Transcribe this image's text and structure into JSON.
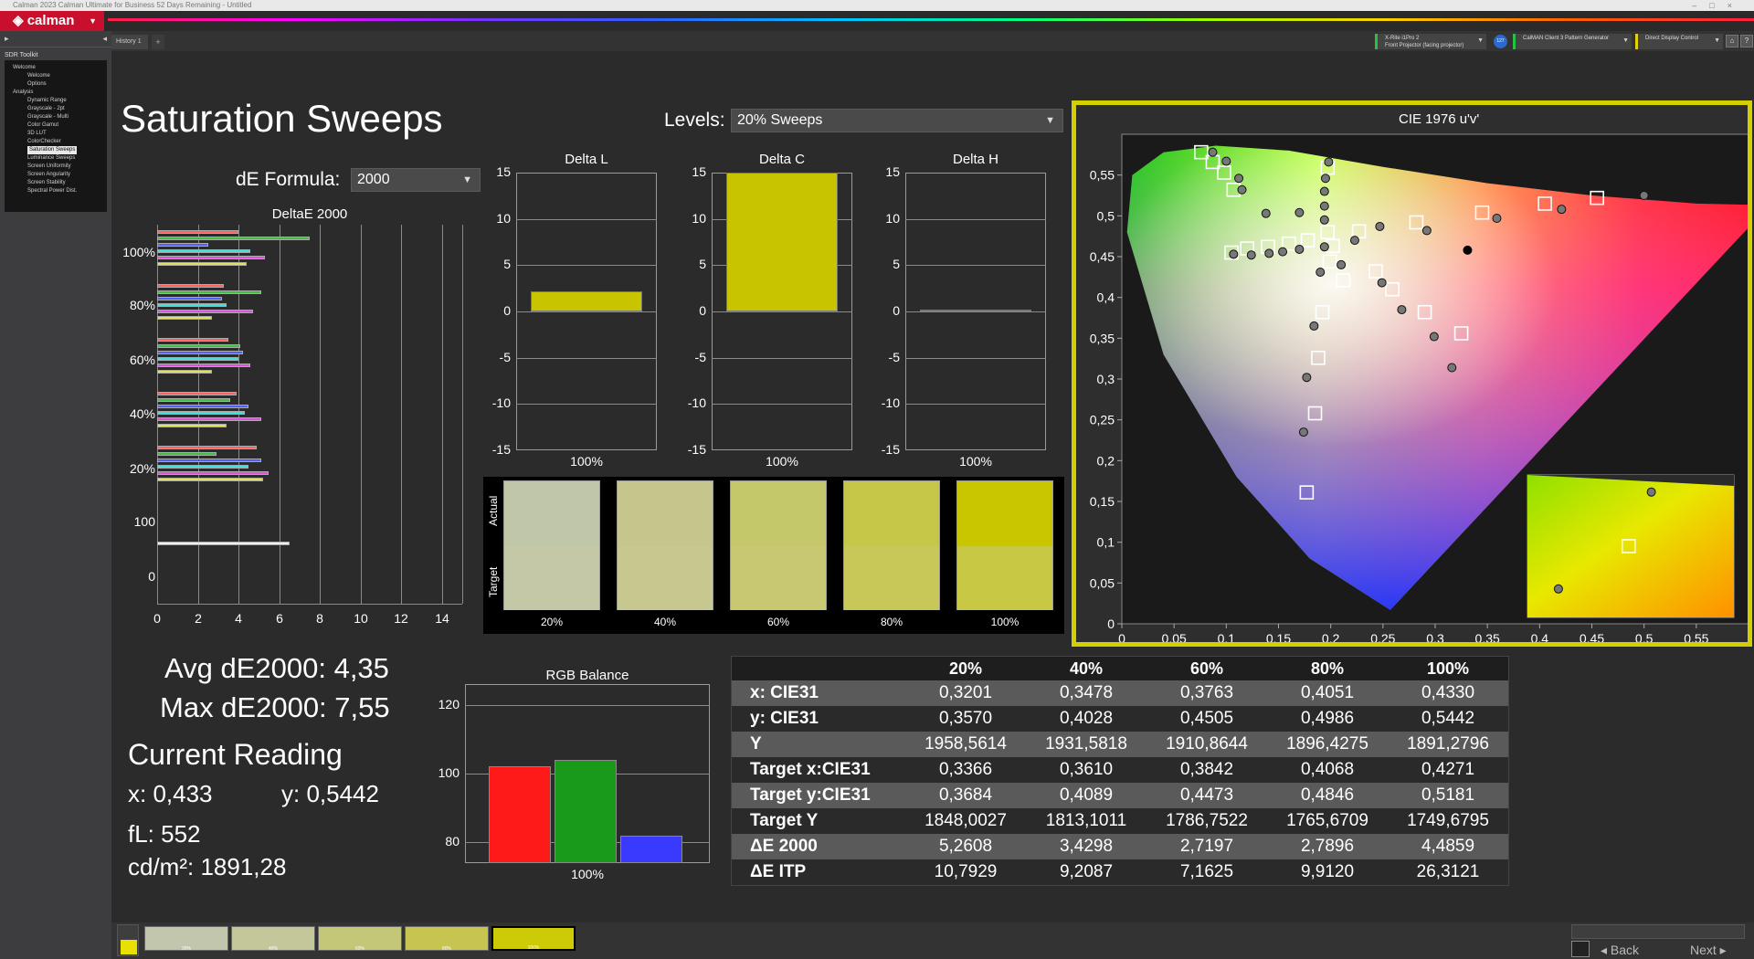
{
  "window": {
    "title": "Calman 2023 Calman Ultimate for Business 52 Days Remaining - Untitled"
  },
  "brand": {
    "logo": "calman"
  },
  "tabs": {
    "history": "History 1",
    "add": "+"
  },
  "devices": {
    "meter_line1": "X-Rite i1Pro 2",
    "meter_line2": "Front Projector (facing projector)",
    "badge": "127",
    "pattern_gen": "CalMAN Client 3 Pattern Generator",
    "display_ctrl": "Direct Display Control"
  },
  "sidebar": {
    "title": "SDR Toolkit",
    "tree": [
      {
        "label": "Welcome",
        "level": 0
      },
      {
        "label": "Welcome",
        "level": 1
      },
      {
        "label": "Options",
        "level": 1
      },
      {
        "label": "Analysis",
        "level": 0
      },
      {
        "label": "Dynamic Range",
        "level": 1
      },
      {
        "label": "Grayscale - 2pt",
        "level": 1
      },
      {
        "label": "Grayscale - Multi",
        "level": 1
      },
      {
        "label": "Color Gamut",
        "level": 1
      },
      {
        "label": "3D LUT",
        "level": 1
      },
      {
        "label": "ColorChecker",
        "level": 1
      },
      {
        "label": "Saturation Sweeps",
        "level": 1,
        "selected": true
      },
      {
        "label": "Luminance Sweeps",
        "level": 1
      },
      {
        "label": "Screen Uniformity",
        "level": 1
      },
      {
        "label": "Screen Angularity",
        "level": 1
      },
      {
        "label": "Screen Stability",
        "level": 1
      },
      {
        "label": "Spectral Power Dist.",
        "level": 1
      }
    ]
  },
  "page": {
    "title": "Saturation Sweeps",
    "levels_label": "Levels:",
    "levels_value": "20% Sweeps",
    "de_formula_label": "dE Formula:",
    "de_formula_value": "2000"
  },
  "colors": {
    "accent": "#d4d000",
    "logo": "#c8102e",
    "yellow_bar": "#c8c400"
  },
  "deltae_chart": {
    "title": "DeltaE 2000",
    "x_ticks": [
      "0",
      "2",
      "4",
      "6",
      "8",
      "10",
      "12",
      "14"
    ],
    "y_labels": [
      "100%",
      "80%",
      "60%",
      "40%",
      "20%",
      "100",
      "0"
    ],
    "xlim": [
      0,
      15
    ],
    "groups": [
      {
        "label": "100%",
        "values": [
          4.0,
          7.5,
          2.5,
          4.6,
          5.3,
          4.4
        ]
      },
      {
        "label": "80%",
        "values": [
          3.3,
          5.1,
          3.2,
          3.4,
          4.7,
          2.7
        ]
      },
      {
        "label": "60%",
        "values": [
          3.5,
          4.1,
          4.2,
          4.0,
          4.6,
          2.7
        ]
      },
      {
        "label": "40%",
        "values": [
          3.9,
          3.6,
          4.5,
          4.3,
          5.1,
          3.4
        ]
      },
      {
        "label": "20%",
        "values": [
          4.9,
          2.9,
          5.1,
          4.5,
          5.5,
          5.2
        ]
      },
      {
        "label": "100",
        "values": [
          6.5
        ]
      }
    ],
    "series_colors": [
      "#ff6060",
      "#40c040",
      "#5060ff",
      "#40e0e0",
      "#e050e0",
      "#e0e060"
    ]
  },
  "delta_charts": {
    "ticks": [
      "15",
      "10",
      "5",
      "0",
      "-5",
      "-10",
      "-15"
    ],
    "ylim": [
      -15,
      15
    ],
    "cat_label": "100%",
    "charts": [
      {
        "title": "Delta L",
        "value": 2.2
      },
      {
        "title": "Delta C",
        "value": 15
      },
      {
        "title": "Delta H",
        "value": 0.2
      }
    ]
  },
  "swatches": {
    "actual_label": "Actual",
    "target_label": "Target",
    "items": [
      {
        "label": "20%",
        "actual": "#c0c6a8",
        "target": "#c5c8a6"
      },
      {
        "label": "40%",
        "actual": "#c4c68c",
        "target": "#c7c890"
      },
      {
        "label": "60%",
        "actual": "#c5c86a",
        "target": "#c8c872"
      },
      {
        "label": "80%",
        "actual": "#c6c648",
        "target": "#c8c858"
      },
      {
        "label": "100%",
        "actual": "#c9c600",
        "target": "#c8c844"
      }
    ]
  },
  "stats": {
    "avg": "Avg dE2000: 4,35",
    "max": "Max dE2000: 7,55",
    "current_title": "Current Reading",
    "x": "x: 0,433",
    "y": "y: 0,5442",
    "fl": "fL: 552",
    "cdm2": "cd/m²: 1891,28"
  },
  "rgb_balance": {
    "title": "RGB Balance",
    "y_ticks": [
      "120",
      "100",
      "80"
    ],
    "ylim": [
      74,
      126
    ],
    "cat_label": "100%",
    "values": [
      {
        "color": "#ff1a1a",
        "value": 102
      },
      {
        "color": "#1a9a1a",
        "value": 104
      },
      {
        "color": "#3a3aff",
        "value": 82
      }
    ]
  },
  "cie": {
    "title": "CIE 1976 u'v'",
    "x_ticks": [
      "0",
      "0,05",
      "0,1",
      "0,15",
      "0,2",
      "0,25",
      "0,3",
      "0,35",
      "0,4",
      "0,45",
      "0,5",
      "0,55"
    ],
    "y_ticks": [
      "0,55",
      "0,5",
      "0,45",
      "0,4",
      "0,35",
      "0,3",
      "0,25",
      "0,2",
      "0,15",
      "0,1",
      "0,05",
      "0"
    ],
    "targets": [
      [
        0.076,
        0.578
      ],
      [
        0.087,
        0.566
      ],
      [
        0.098,
        0.553
      ],
      [
        0.107,
        0.532
      ],
      [
        0.197,
        0.559
      ],
      [
        0.197,
        0.48
      ],
      [
        0.105,
        0.455
      ],
      [
        0.12,
        0.46
      ],
      [
        0.14,
        0.462
      ],
      [
        0.16,
        0.466
      ],
      [
        0.178,
        0.47
      ],
      [
        0.202,
        0.463
      ],
      [
        0.227,
        0.481
      ],
      [
        0.199,
        0.444
      ],
      [
        0.243,
        0.432
      ],
      [
        0.282,
        0.492
      ],
      [
        0.212,
        0.421
      ],
      [
        0.259,
        0.41
      ],
      [
        0.345,
        0.504
      ],
      [
        0.405,
        0.515
      ],
      [
        0.455,
        0.522
      ],
      [
        0.29,
        0.382
      ],
      [
        0.192,
        0.382
      ],
      [
        0.325,
        0.356
      ],
      [
        0.188,
        0.326
      ],
      [
        0.185,
        0.258
      ],
      [
        0.177,
        0.161
      ]
    ],
    "measured": [
      [
        0.087,
        0.578
      ],
      [
        0.1,
        0.567
      ],
      [
        0.112,
        0.546
      ],
      [
        0.115,
        0.532
      ],
      [
        0.198,
        0.566
      ],
      [
        0.195,
        0.546
      ],
      [
        0.194,
        0.53
      ],
      [
        0.194,
        0.512
      ],
      [
        0.194,
        0.495
      ],
      [
        0.17,
        0.504
      ],
      [
        0.138,
        0.503
      ],
      [
        0.107,
        0.453
      ],
      [
        0.124,
        0.452
      ],
      [
        0.141,
        0.454
      ],
      [
        0.154,
        0.456
      ],
      [
        0.17,
        0.459
      ],
      [
        0.194,
        0.462
      ],
      [
        0.223,
        0.47
      ],
      [
        0.247,
        0.487
      ],
      [
        0.292,
        0.482
      ],
      [
        0.359,
        0.497
      ],
      [
        0.421,
        0.508
      ],
      [
        0.5,
        0.525
      ],
      [
        0.21,
        0.44
      ],
      [
        0.19,
        0.431
      ],
      [
        0.249,
        0.418
      ],
      [
        0.268,
        0.385
      ],
      [
        0.184,
        0.365
      ],
      [
        0.299,
        0.352
      ],
      [
        0.177,
        0.302
      ],
      [
        0.316,
        0.314
      ],
      [
        0.174,
        0.235
      ]
    ],
    "current": [
      0.331,
      0.458
    ],
    "inset_targets": [
      [
        0.49,
        0.5
      ]
    ],
    "inset_measured": [
      [
        0.6,
        0.88
      ],
      [
        0.15,
        0.2
      ]
    ]
  },
  "table": {
    "headers": [
      "",
      "20%",
      "40%",
      "60%",
      "80%",
      "100%"
    ],
    "rows": [
      {
        "label": "x: CIE31",
        "values": [
          "0,3201",
          "0,3478",
          "0,3763",
          "0,4051",
          "0,4330"
        ]
      },
      {
        "label": "y: CIE31",
        "values": [
          "0,3570",
          "0,4028",
          "0,4505",
          "0,4986",
          "0,5442"
        ]
      },
      {
        "label": "Y",
        "values": [
          "1958,5614",
          "1931,5818",
          "1910,8644",
          "1896,4275",
          "1891,2796"
        ]
      },
      {
        "label": "Target x:CIE31",
        "values": [
          "0,3366",
          "0,3610",
          "0,3842",
          "0,4068",
          "0,4271"
        ]
      },
      {
        "label": "Target y:CIE31",
        "values": [
          "0,3684",
          "0,4089",
          "0,4473",
          "0,4846",
          "0,5181"
        ]
      },
      {
        "label": "Target Y",
        "values": [
          "1848,0027",
          "1813,1011",
          "1786,7522",
          "1765,6709",
          "1749,6795"
        ]
      },
      {
        "label": "ΔE 2000",
        "values": [
          "5,2608",
          "3,4298",
          "2,7197",
          "2,7896",
          "4,4859"
        ]
      },
      {
        "label": "ΔE ITP",
        "values": [
          "10,7929",
          "9,2087",
          "7,1625",
          "9,9120",
          "26,3121"
        ]
      }
    ]
  },
  "bottom": {
    "swatches": [
      {
        "color": "#c2c6ac",
        "label": "20%"
      },
      {
        "color": "#c4c79a",
        "label": "40%"
      },
      {
        "color": "#c4c678",
        "label": "60%"
      },
      {
        "color": "#c7c550",
        "label": "80%"
      },
      {
        "color": "#cdcb08",
        "label": "100%"
      }
    ],
    "back": "Back",
    "next": "Next"
  }
}
